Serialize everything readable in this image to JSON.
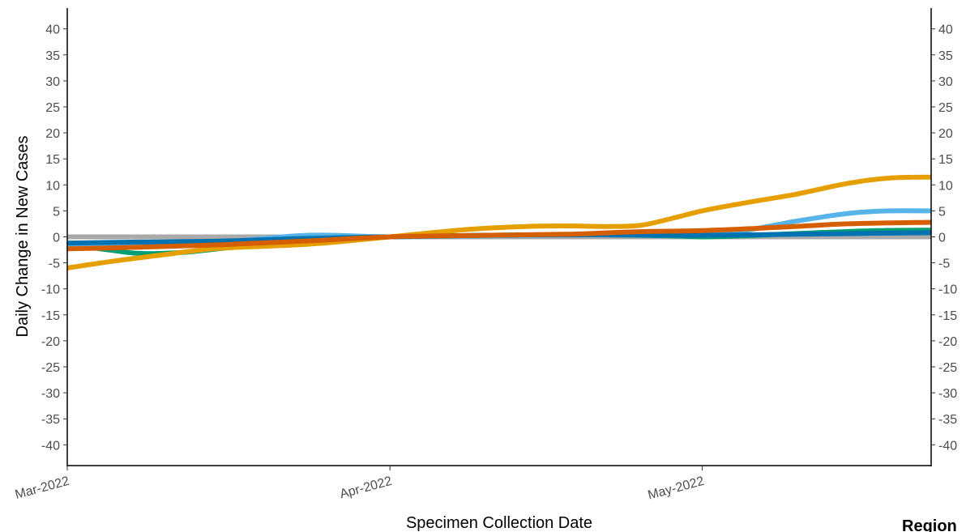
{
  "chart_data": {
    "type": "line",
    "xlabel": "Specimen Collection Date",
    "ylabel": "Daily Change in New Cases",
    "ylim": [
      -44,
      44
    ],
    "y_ticks": [
      -40,
      -35,
      -30,
      -25,
      -20,
      -15,
      -10,
      -5,
      0,
      5,
      10,
      15,
      20,
      25,
      30,
      35,
      40
    ],
    "xlim": [
      "2022-03-01",
      "2022-05-23"
    ],
    "x_ticks": [
      {
        "date": "2022-03-01",
        "label": "Mar-2022"
      },
      {
        "date": "2022-04-01",
        "label": "Apr-2022"
      },
      {
        "date": "2022-05-01",
        "label": "May-2022"
      }
    ],
    "secondary_y_axis": true,
    "grid": false,
    "legend_title": "Region",
    "legend_placement": "right (cut off)",
    "reference_line": {
      "y": 0,
      "color": "#aaaaaa"
    },
    "series": [
      {
        "color": "#009E73",
        "points": [
          {
            "x": "2022-03-01",
            "y": -1.5
          },
          {
            "x": "2022-03-05",
            "y": -2.5
          },
          {
            "x": "2022-03-08",
            "y": -3.2
          },
          {
            "x": "2022-03-12",
            "y": -3.0
          },
          {
            "x": "2022-03-17",
            "y": -2.0
          },
          {
            "x": "2022-03-24",
            "y": -0.8
          },
          {
            "x": "2022-04-01",
            "y": 0
          },
          {
            "x": "2022-04-10",
            "y": 0.3
          },
          {
            "x": "2022-04-20",
            "y": 0.4
          },
          {
            "x": "2022-04-28",
            "y": 0.2
          },
          {
            "x": "2022-05-01",
            "y": 0
          },
          {
            "x": "2022-05-05",
            "y": 0.2
          },
          {
            "x": "2022-05-12",
            "y": 0.8
          },
          {
            "x": "2022-05-18",
            "y": 1.2
          },
          {
            "x": "2022-05-23",
            "y": 1.3
          }
        ]
      },
      {
        "color": "#56B4E9",
        "points": [
          {
            "x": "2022-03-01",
            "y": -2.0
          },
          {
            "x": "2022-03-08",
            "y": -1.5
          },
          {
            "x": "2022-03-16",
            "y": -1.0
          },
          {
            "x": "2022-03-24",
            "y": 0.3
          },
          {
            "x": "2022-04-01",
            "y": 0
          },
          {
            "x": "2022-04-10",
            "y": 0.2
          },
          {
            "x": "2022-04-20",
            "y": 0.4
          },
          {
            "x": "2022-04-28",
            "y": 0.3
          },
          {
            "x": "2022-05-01",
            "y": 0.5
          },
          {
            "x": "2022-05-05",
            "y": 1.2
          },
          {
            "x": "2022-05-10",
            "y": 3.0
          },
          {
            "x": "2022-05-15",
            "y": 4.5
          },
          {
            "x": "2022-05-19",
            "y": 5.0
          },
          {
            "x": "2022-05-23",
            "y": 5.0
          }
        ]
      },
      {
        "color": "#0072B2",
        "points": [
          {
            "x": "2022-03-01",
            "y": -1.2
          },
          {
            "x": "2022-03-08",
            "y": -1.0
          },
          {
            "x": "2022-03-16",
            "y": -0.8
          },
          {
            "x": "2022-03-24",
            "y": -0.3
          },
          {
            "x": "2022-04-01",
            "y": 0
          },
          {
            "x": "2022-04-10",
            "y": 0.3
          },
          {
            "x": "2022-04-20",
            "y": 0.4
          },
          {
            "x": "2022-04-28",
            "y": 0.3
          },
          {
            "x": "2022-05-01",
            "y": 0.3
          },
          {
            "x": "2022-05-10",
            "y": 0.5
          },
          {
            "x": "2022-05-18",
            "y": 0.7
          },
          {
            "x": "2022-05-23",
            "y": 0.8
          }
        ]
      },
      {
        "color": "#E69F00",
        "points": [
          {
            "x": "2022-03-01",
            "y": -6.0
          },
          {
            "x": "2022-03-05",
            "y": -4.8
          },
          {
            "x": "2022-03-10",
            "y": -3.5
          },
          {
            "x": "2022-03-15",
            "y": -2.3
          },
          {
            "x": "2022-03-20",
            "y": -1.8
          },
          {
            "x": "2022-03-25",
            "y": -1.3
          },
          {
            "x": "2022-04-01",
            "y": 0
          },
          {
            "x": "2022-04-05",
            "y": 0.8
          },
          {
            "x": "2022-04-09",
            "y": 1.5
          },
          {
            "x": "2022-04-14",
            "y": 2.0
          },
          {
            "x": "2022-04-18",
            "y": 2.1
          },
          {
            "x": "2022-04-22",
            "y": 2.0
          },
          {
            "x": "2022-04-25",
            "y": 2.2
          },
          {
            "x": "2022-04-28",
            "y": 3.5
          },
          {
            "x": "2022-05-01",
            "y": 5.0
          },
          {
            "x": "2022-05-05",
            "y": 6.5
          },
          {
            "x": "2022-05-10",
            "y": 8.2
          },
          {
            "x": "2022-05-15",
            "y": 10.3
          },
          {
            "x": "2022-05-19",
            "y": 11.3
          },
          {
            "x": "2022-05-23",
            "y": 11.5
          }
        ]
      },
      {
        "color": "#D55E00",
        "points": [
          {
            "x": "2022-03-01",
            "y": -2.3
          },
          {
            "x": "2022-03-08",
            "y": -2.0
          },
          {
            "x": "2022-03-16",
            "y": -1.5
          },
          {
            "x": "2022-03-24",
            "y": -0.8
          },
          {
            "x": "2022-04-01",
            "y": 0
          },
          {
            "x": "2022-04-10",
            "y": 0.3
          },
          {
            "x": "2022-04-18",
            "y": 0.5
          },
          {
            "x": "2022-04-25",
            "y": 1.0
          },
          {
            "x": "2022-05-01",
            "y": 1.2
          },
          {
            "x": "2022-05-08",
            "y": 1.8
          },
          {
            "x": "2022-05-15",
            "y": 2.5
          },
          {
            "x": "2022-05-23",
            "y": 2.8
          }
        ]
      }
    ]
  }
}
